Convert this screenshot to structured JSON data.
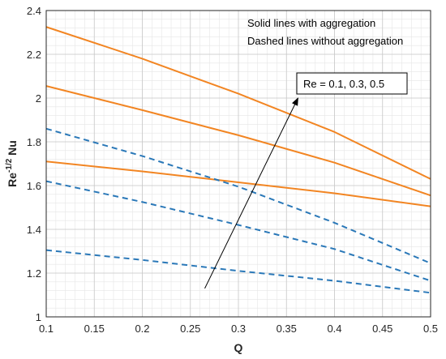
{
  "chart_data": {
    "type": "line",
    "xlabel": "Q",
    "ylabel": "Re-1/2 Nu",
    "ylabel_parts": {
      "base": "Re",
      "sup": "-1/2",
      "tail": " Nu"
    },
    "xlim": [
      0.1,
      0.5
    ],
    "ylim": [
      1,
      2.4
    ],
    "grid": true,
    "minor_grid": true,
    "x_ticks": [
      "0.1",
      "0.15",
      "0.2",
      "0.25",
      "0.3",
      "0.35",
      "0.4",
      "0.45",
      "0.5"
    ],
    "y_ticks": [
      "1",
      "1.2",
      "1.4",
      "1.6",
      "1.8",
      "2",
      "2.2",
      "2.4"
    ],
    "x": [
      0.1,
      0.2,
      0.3,
      0.4,
      0.5
    ],
    "series": [
      {
        "style": "solid",
        "color": "#f28522",
        "values": [
          2.325,
          2.18,
          2.02,
          1.845,
          1.63
        ]
      },
      {
        "style": "solid",
        "color": "#f28522",
        "values": [
          2.055,
          1.945,
          1.83,
          1.705,
          1.555
        ]
      },
      {
        "style": "solid",
        "color": "#f28522",
        "values": [
          1.71,
          1.665,
          1.615,
          1.565,
          1.505
        ]
      },
      {
        "style": "dashed",
        "color": "#2a78b8",
        "values": [
          1.86,
          1.735,
          1.595,
          1.43,
          1.245
        ]
      },
      {
        "style": "dashed",
        "color": "#2a78b8",
        "values": [
          1.62,
          1.525,
          1.42,
          1.31,
          1.165
        ]
      },
      {
        "style": "dashed",
        "color": "#2a78b8",
        "values": [
          1.305,
          1.26,
          1.21,
          1.165,
          1.11
        ]
      }
    ],
    "annotations": {
      "legend_line1": "Solid lines with aggregation",
      "legend_line2": "Dashed lines without aggregation",
      "box_label": "Re = 0.1, 0.3, 0.5",
      "arrow": {
        "from": [
          0.265,
          1.13
        ],
        "to": [
          0.362,
          2.0
        ]
      }
    }
  }
}
